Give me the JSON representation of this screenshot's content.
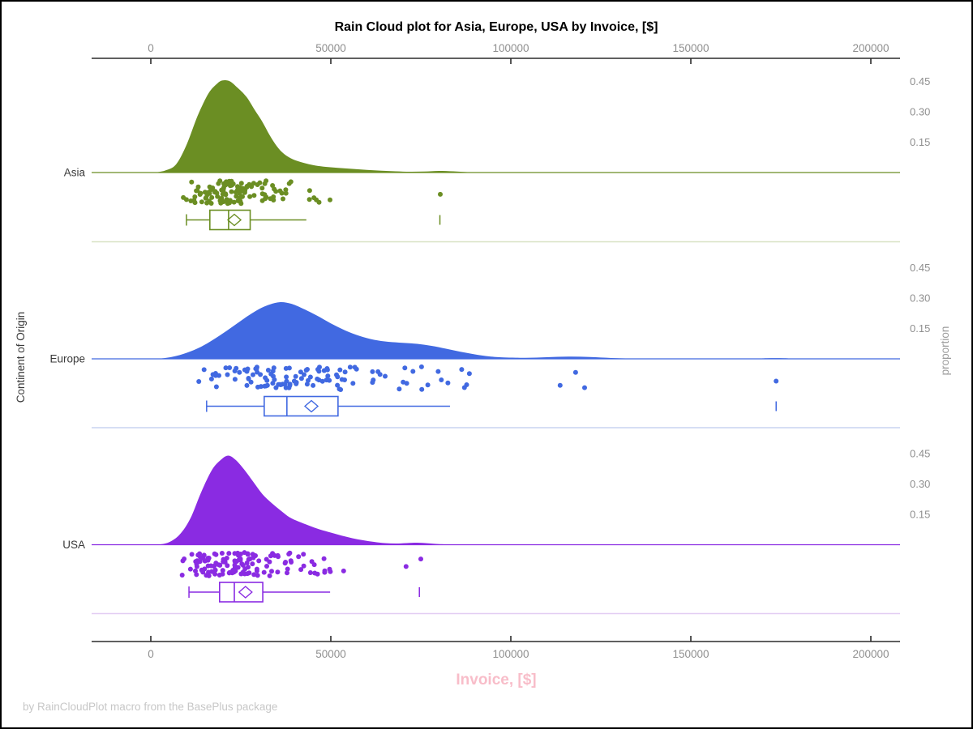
{
  "title": "Rain Cloud plot for Asia, Europe, USA by Invoice, [$]",
  "footnote": "by RainCloudPlot macro from the BasePlus package",
  "axes": {
    "x_label": "Invoice, [$]",
    "y_label_left": "Continent of Origin",
    "y_label_right": "proportion"
  },
  "colors": {
    "x_label_pink": "#f8bdc9",
    "axis_line": "#2b2b2b",
    "tick_label_gray": "#8f8f8f",
    "category_label": "#3a3a3a",
    "right_axis_label_gray": "#9b9b9b",
    "footnote_gray": "#c7c7c7",
    "box_fill": "#ffffff"
  },
  "chart_data": {
    "type": "raincloud (half-violin density + jitter scatter + boxplot)",
    "title": "Rain Cloud plot for Asia, Europe, USA by Invoice, [$]",
    "xlabel": "Invoice, [$]",
    "ylabel_left": "Continent of Origin",
    "ylabel_right": "proportion",
    "x_ticks": [
      0,
      50000,
      100000,
      150000,
      200000
    ],
    "x_range": [
      0,
      200000
    ],
    "proportion_ticks": [
      0.45,
      0.3,
      0.15
    ],
    "categories": [
      "Asia",
      "Europe",
      "USA"
    ],
    "series": [
      {
        "name": "Asia",
        "color": "#6b8e23",
        "separator_color": "#d8e2c4",
        "density": [
          [
            1000,
            0
          ],
          [
            4000,
            0.01
          ],
          [
            7000,
            0.04
          ],
          [
            10000,
            0.14
          ],
          [
            13000,
            0.28
          ],
          [
            16000,
            0.39
          ],
          [
            18500,
            0.44
          ],
          [
            20000,
            0.455
          ],
          [
            22000,
            0.45
          ],
          [
            24000,
            0.42
          ],
          [
            26500,
            0.375
          ],
          [
            29000,
            0.305
          ],
          [
            31000,
            0.25
          ],
          [
            33000,
            0.185
          ],
          [
            35000,
            0.13
          ],
          [
            37000,
            0.092
          ],
          [
            39500,
            0.065
          ],
          [
            42000,
            0.05
          ],
          [
            45000,
            0.037
          ],
          [
            48000,
            0.029
          ],
          [
            52000,
            0.023
          ],
          [
            56000,
            0.018
          ],
          [
            60000,
            0.013
          ],
          [
            64000,
            0.009
          ],
          [
            68000,
            0.006
          ],
          [
            72000,
            0.004
          ],
          [
            76000,
            0.005
          ],
          [
            80000,
            0.008
          ],
          [
            84000,
            0.006
          ],
          [
            88000,
            0.002
          ],
          [
            92000,
            0.001
          ],
          [
            100000,
            0
          ],
          [
            205000,
            0
          ]
        ],
        "box": {
          "whisker_low": 9900,
          "q1": 16400,
          "median": 21600,
          "q3": 27600,
          "mean": 23200,
          "whisker_high": 43200,
          "outliers": [
            80300
          ]
        },
        "scatter_count": 120,
        "scatter_range": [
          7500,
          60000
        ],
        "scatter_extra": [
          [
            80400,
            0.6
          ]
        ]
      },
      {
        "name": "Europe",
        "color": "#4169e1",
        "separator_color": "#c8d4f1",
        "density": [
          [
            2000,
            0
          ],
          [
            6000,
            0.01
          ],
          [
            10000,
            0.03
          ],
          [
            14000,
            0.06
          ],
          [
            18000,
            0.102
          ],
          [
            22000,
            0.15
          ],
          [
            26000,
            0.2
          ],
          [
            30000,
            0.245
          ],
          [
            33000,
            0.268
          ],
          [
            36000,
            0.28
          ],
          [
            39000,
            0.272
          ],
          [
            42000,
            0.25
          ],
          [
            46000,
            0.215
          ],
          [
            50000,
            0.175
          ],
          [
            54000,
            0.14
          ],
          [
            58000,
            0.113
          ],
          [
            62000,
            0.094
          ],
          [
            66000,
            0.084
          ],
          [
            70000,
            0.079
          ],
          [
            74000,
            0.074
          ],
          [
            78000,
            0.064
          ],
          [
            82000,
            0.05
          ],
          [
            86000,
            0.035
          ],
          [
            90000,
            0.022
          ],
          [
            94000,
            0.012
          ],
          [
            98000,
            0.007
          ],
          [
            104000,
            0.005
          ],
          [
            110000,
            0.008
          ],
          [
            116000,
            0.011
          ],
          [
            122000,
            0.009
          ],
          [
            128000,
            0.004
          ],
          [
            134000,
            0.001
          ],
          [
            140000,
            0
          ],
          [
            166000,
            0
          ],
          [
            171000,
            0.003
          ],
          [
            176000,
            0.003
          ],
          [
            181000,
            0
          ],
          [
            205000,
            0
          ]
        ],
        "box": {
          "whisker_low": 15500,
          "q1": 31500,
          "median": 37800,
          "q3": 52000,
          "mean": 44600,
          "whisker_high": 83100,
          "outliers": [
            173700
          ]
        },
        "scatter_count": 115,
        "scatter_range": [
          9000,
          88000
        ],
        "scatter_extra": [
          [
            88500,
            0.3
          ],
          [
            113700,
            0.8
          ],
          [
            118000,
            0.25
          ],
          [
            120500,
            0.9
          ],
          [
            173700,
            0.62
          ]
        ]
      },
      {
        "name": "USA",
        "color": "#8a2be2",
        "separator_color": "#e3cdf3",
        "density": [
          [
            2000,
            0
          ],
          [
            5000,
            0.012
          ],
          [
            8000,
            0.05
          ],
          [
            11000,
            0.13
          ],
          [
            14000,
            0.26
          ],
          [
            17000,
            0.37
          ],
          [
            19500,
            0.42
          ],
          [
            21500,
            0.44
          ],
          [
            23500,
            0.42
          ],
          [
            26000,
            0.37
          ],
          [
            28500,
            0.31
          ],
          [
            31000,
            0.25
          ],
          [
            33500,
            0.207
          ],
          [
            36000,
            0.17
          ],
          [
            38500,
            0.136
          ],
          [
            41000,
            0.115
          ],
          [
            44000,
            0.094
          ],
          [
            47000,
            0.075
          ],
          [
            50000,
            0.06
          ],
          [
            53000,
            0.045
          ],
          [
            56000,
            0.032
          ],
          [
            59000,
            0.022
          ],
          [
            62000,
            0.014
          ],
          [
            65000,
            0.008
          ],
          [
            68000,
            0.006
          ],
          [
            71000,
            0.008
          ],
          [
            74000,
            0.01
          ],
          [
            77000,
            0.007
          ],
          [
            80000,
            0.003
          ],
          [
            84000,
            0.001
          ],
          [
            90000,
            0
          ],
          [
            205000,
            0
          ]
        ],
        "box": {
          "whisker_low": 10600,
          "q1": 19100,
          "median": 23200,
          "q3": 31100,
          "mean": 26300,
          "whisker_high": 49800,
          "outliers": [
            74600
          ]
        },
        "scatter_count": 130,
        "scatter_range": [
          8500,
          56000
        ],
        "scatter_extra": [
          [
            70900,
            0.6
          ],
          [
            75000,
            0.28
          ]
        ]
      }
    ],
    "legend": "none",
    "grid": "off"
  }
}
